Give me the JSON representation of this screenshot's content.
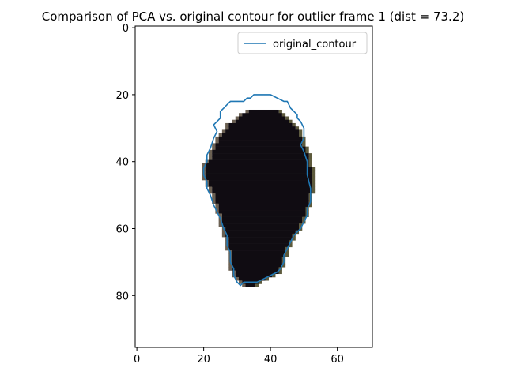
{
  "chart_data": {
    "type": "image",
    "title": "Comparison of PCA vs. original contour for outlier frame 1 (dist = 73.2)",
    "xlim": [
      -0.5,
      70.5
    ],
    "ylim": [
      95.5,
      -0.5
    ],
    "x_ticks": [
      0,
      20,
      40,
      60
    ],
    "y_ticks": [
      0,
      20,
      40,
      60,
      80
    ],
    "legend": {
      "position": "upper right",
      "entries": [
        "original_contour"
      ]
    },
    "series": [
      {
        "name": "original_contour",
        "color": "#1f77b4",
        "points": [
          [
            38,
            20
          ],
          [
            40,
            20
          ],
          [
            42,
            21
          ],
          [
            44,
            22
          ],
          [
            45,
            22
          ],
          [
            46,
            24
          ],
          [
            47,
            25
          ],
          [
            48,
            26
          ],
          [
            48,
            27
          ],
          [
            49,
            28
          ],
          [
            50,
            30
          ],
          [
            50,
            33
          ],
          [
            49,
            35
          ],
          [
            50,
            37
          ],
          [
            51,
            40
          ],
          [
            51,
            44
          ],
          [
            52,
            48
          ],
          [
            52,
            52
          ],
          [
            51,
            54
          ],
          [
            51,
            56
          ],
          [
            50,
            58
          ],
          [
            49,
            60
          ],
          [
            48,
            61
          ],
          [
            47,
            62
          ],
          [
            46,
            64
          ],
          [
            45,
            66
          ],
          [
            44,
            68
          ],
          [
            44,
            70
          ],
          [
            43,
            72
          ],
          [
            42,
            73
          ],
          [
            40,
            74
          ],
          [
            38,
            75
          ],
          [
            36,
            76
          ],
          [
            34,
            76
          ],
          [
            32,
            76
          ],
          [
            31,
            77
          ],
          [
            30,
            76
          ],
          [
            29,
            74
          ],
          [
            29,
            72
          ],
          [
            28,
            70
          ],
          [
            28,
            67
          ],
          [
            27,
            65
          ],
          [
            27,
            62
          ],
          [
            26,
            60
          ],
          [
            25,
            57
          ],
          [
            24,
            55
          ],
          [
            23,
            53
          ],
          [
            22,
            50
          ],
          [
            21,
            48
          ],
          [
            21,
            46
          ],
          [
            20,
            44
          ],
          [
            20,
            42
          ],
          [
            21,
            40
          ],
          [
            21,
            38
          ],
          [
            22,
            36
          ],
          [
            23,
            33
          ],
          [
            24,
            31
          ],
          [
            23,
            29
          ],
          [
            25,
            27
          ],
          [
            25,
            25
          ],
          [
            26,
            24
          ],
          [
            27,
            23
          ],
          [
            28,
            22
          ],
          [
            30,
            22
          ],
          [
            32,
            22
          ],
          [
            33,
            21
          ],
          [
            34,
            21
          ],
          [
            35,
            20
          ],
          [
            36,
            20
          ],
          [
            38,
            20
          ]
        ]
      }
    ],
    "image_blob": {
      "description_color": "#100c12",
      "rows": [
        [
          25,
          34,
          42
        ],
        [
          26,
          32,
          43
        ],
        [
          27,
          31,
          44
        ],
        [
          28,
          30,
          45
        ],
        [
          29,
          28,
          46
        ],
        [
          30,
          28,
          47
        ],
        [
          31,
          27,
          48
        ],
        [
          32,
          26,
          48
        ],
        [
          33,
          25,
          49
        ],
        [
          34,
          25,
          49
        ],
        [
          35,
          24,
          49
        ],
        [
          36,
          24,
          50
        ],
        [
          37,
          23,
          50
        ],
        [
          38,
          23,
          51
        ],
        [
          39,
          23,
          51
        ],
        [
          40,
          22,
          51
        ],
        [
          41,
          21,
          51
        ],
        [
          42,
          21,
          52
        ],
        [
          43,
          21,
          52
        ],
        [
          44,
          21,
          52
        ],
        [
          45,
          21,
          52
        ],
        [
          46,
          22,
          52
        ],
        [
          47,
          22,
          52
        ],
        [
          48,
          23,
          52
        ],
        [
          49,
          23,
          52
        ],
        [
          50,
          24,
          51
        ],
        [
          51,
          24,
          51
        ],
        [
          52,
          24,
          51
        ],
        [
          53,
          25,
          51
        ],
        [
          54,
          25,
          50
        ],
        [
          55,
          25,
          50
        ],
        [
          56,
          26,
          50
        ],
        [
          57,
          26,
          49
        ],
        [
          58,
          26,
          49
        ],
        [
          59,
          26,
          48
        ],
        [
          60,
          27,
          48
        ],
        [
          61,
          27,
          47
        ],
        [
          62,
          27,
          46
        ],
        [
          63,
          28,
          46
        ],
        [
          64,
          28,
          45
        ],
        [
          65,
          28,
          45
        ],
        [
          66,
          28,
          44
        ],
        [
          67,
          29,
          44
        ],
        [
          68,
          29,
          44
        ],
        [
          69,
          29,
          43
        ],
        [
          70,
          29,
          43
        ],
        [
          71,
          29,
          43
        ],
        [
          72,
          29,
          42
        ],
        [
          73,
          30,
          42
        ],
        [
          74,
          30,
          40
        ],
        [
          75,
          31,
          38
        ],
        [
          76,
          32,
          36
        ],
        [
          77,
          33,
          35
        ]
      ]
    }
  }
}
